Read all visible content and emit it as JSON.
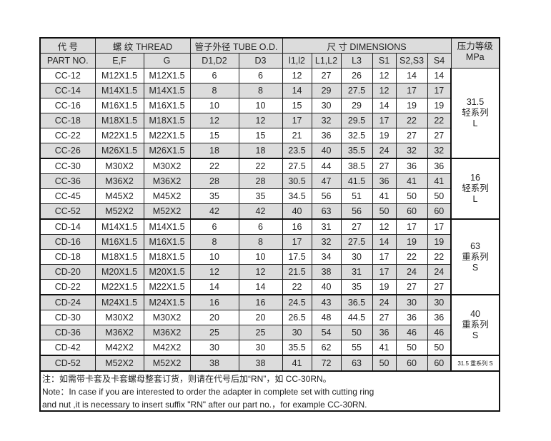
{
  "header": {
    "part_cn": "代 号",
    "part_en": "PART NO.",
    "thread": "螺 纹  THREAD",
    "ef": "E,F",
    "g": "G",
    "tube": "管子外径 TUBE O.D.",
    "d1d2": "D1,D2",
    "d3": "D3",
    "dims": "尺 寸   DIMENSIONS",
    "l1l2": "l1,l2",
    "L1L2": "L1,L2",
    "L3": "L3",
    "S1": "S1",
    "S2S3": "S2,S3",
    "S4": "S4",
    "pressure": "压力等级",
    "pressure_unit": "MPa"
  },
  "groups": [
    {
      "pressure": [
        "31.5",
        "轻系列",
        "L"
      ],
      "rows": [
        [
          "CC-12",
          "M12X1.5",
          "M12X1.5",
          "6",
          "6",
          "12",
          "27",
          "26",
          "12",
          "14",
          "14"
        ],
        [
          "CC-14",
          "M14X1.5",
          "M14X1.5",
          "8",
          "8",
          "14",
          "29",
          "27.5",
          "12",
          "17",
          "17"
        ],
        [
          "CC-16",
          "M16X1.5",
          "M16X1.5",
          "10",
          "10",
          "15",
          "30",
          "29",
          "14",
          "19",
          "19"
        ],
        [
          "CC-18",
          "M18X1.5",
          "M18X1.5",
          "12",
          "12",
          "17",
          "32",
          "29.5",
          "17",
          "22",
          "22"
        ],
        [
          "CC-22",
          "M22X1.5",
          "M22X1.5",
          "15",
          "15",
          "21",
          "36",
          "32.5",
          "19",
          "27",
          "27"
        ],
        [
          "CC-26",
          "M26X1.5",
          "M26X1.5",
          "18",
          "18",
          "23.5",
          "40",
          "35.5",
          "24",
          "32",
          "32"
        ]
      ]
    },
    {
      "pressure": [
        "16",
        "轻系列",
        "L"
      ],
      "rows": [
        [
          "CC-30",
          "M30X2",
          "M30X2",
          "22",
          "22",
          "27.5",
          "44",
          "38.5",
          "27",
          "36",
          "36"
        ],
        [
          "CC-36",
          "M36X2",
          "M36X2",
          "28",
          "28",
          "30.5",
          "47",
          "41.5",
          "36",
          "41",
          "41"
        ],
        [
          "CC-45",
          "M45X2",
          "M45X2",
          "35",
          "35",
          "34.5",
          "56",
          "51",
          "41",
          "50",
          "50"
        ],
        [
          "CC-52",
          "M52X2",
          "M52X2",
          "42",
          "42",
          "40",
          "63",
          "56",
          "50",
          "60",
          "60"
        ]
      ]
    },
    {
      "pressure": [
        "63",
        "重系列",
        "S"
      ],
      "rows": [
        [
          "CD-14",
          "M14X1.5",
          "M14X1.5",
          "6",
          "6",
          "16",
          "31",
          "27",
          "12",
          "17",
          "17"
        ],
        [
          "CD-16",
          "M16X1.5",
          "M16X1.5",
          "8",
          "8",
          "17",
          "32",
          "27.5",
          "14",
          "19",
          "19"
        ],
        [
          "CD-18",
          "M18X1.5",
          "M18X1.5",
          "10",
          "10",
          "17.5",
          "34",
          "30",
          "17",
          "22",
          "22"
        ],
        [
          "CD-20",
          "M20X1.5",
          "M20X1.5",
          "12",
          "12",
          "21.5",
          "38",
          "31",
          "17",
          "24",
          "24"
        ],
        [
          "CD-22",
          "M22X1.5",
          "M22X1.5",
          "14",
          "14",
          "22",
          "40",
          "35",
          "19",
          "27",
          "27"
        ]
      ]
    },
    {
      "pressure": [
        "40",
        "重系列",
        "S"
      ],
      "rows": [
        [
          "CD-24",
          "M24X1.5",
          "M24X1.5",
          "16",
          "16",
          "24.5",
          "43",
          "36.5",
          "24",
          "30",
          "30"
        ],
        [
          "CD-30",
          "M30X2",
          "M30X2",
          "20",
          "20",
          "26.5",
          "48",
          "44.5",
          "27",
          "36",
          "36"
        ],
        [
          "CD-36",
          "M36X2",
          "M36X2",
          "25",
          "25",
          "30",
          "54",
          "50",
          "36",
          "46",
          "46"
        ],
        [
          "CD-42",
          "M42X2",
          "M42X2",
          "30",
          "30",
          "35.5",
          "62",
          "55",
          "41",
          "50",
          "50"
        ]
      ]
    },
    {
      "pressure": [
        "31.5 重系列 S"
      ],
      "rows": [
        [
          "CD-52",
          "M52X2",
          "M52X2",
          "38",
          "38",
          "41",
          "72",
          "63",
          "50",
          "60",
          "60"
        ]
      ]
    }
  ],
  "notes": [
    "注：如需带卡套及卡套螺母整套订货，则请在代号后加“RN”，如 CC-30RN。",
    "Note：In case if you are interested to order the adapter in complete set with cutting ring",
    "and nut ,it is necessary to insert suffix \"RN\" after our part no.，for example CC-30RN."
  ]
}
